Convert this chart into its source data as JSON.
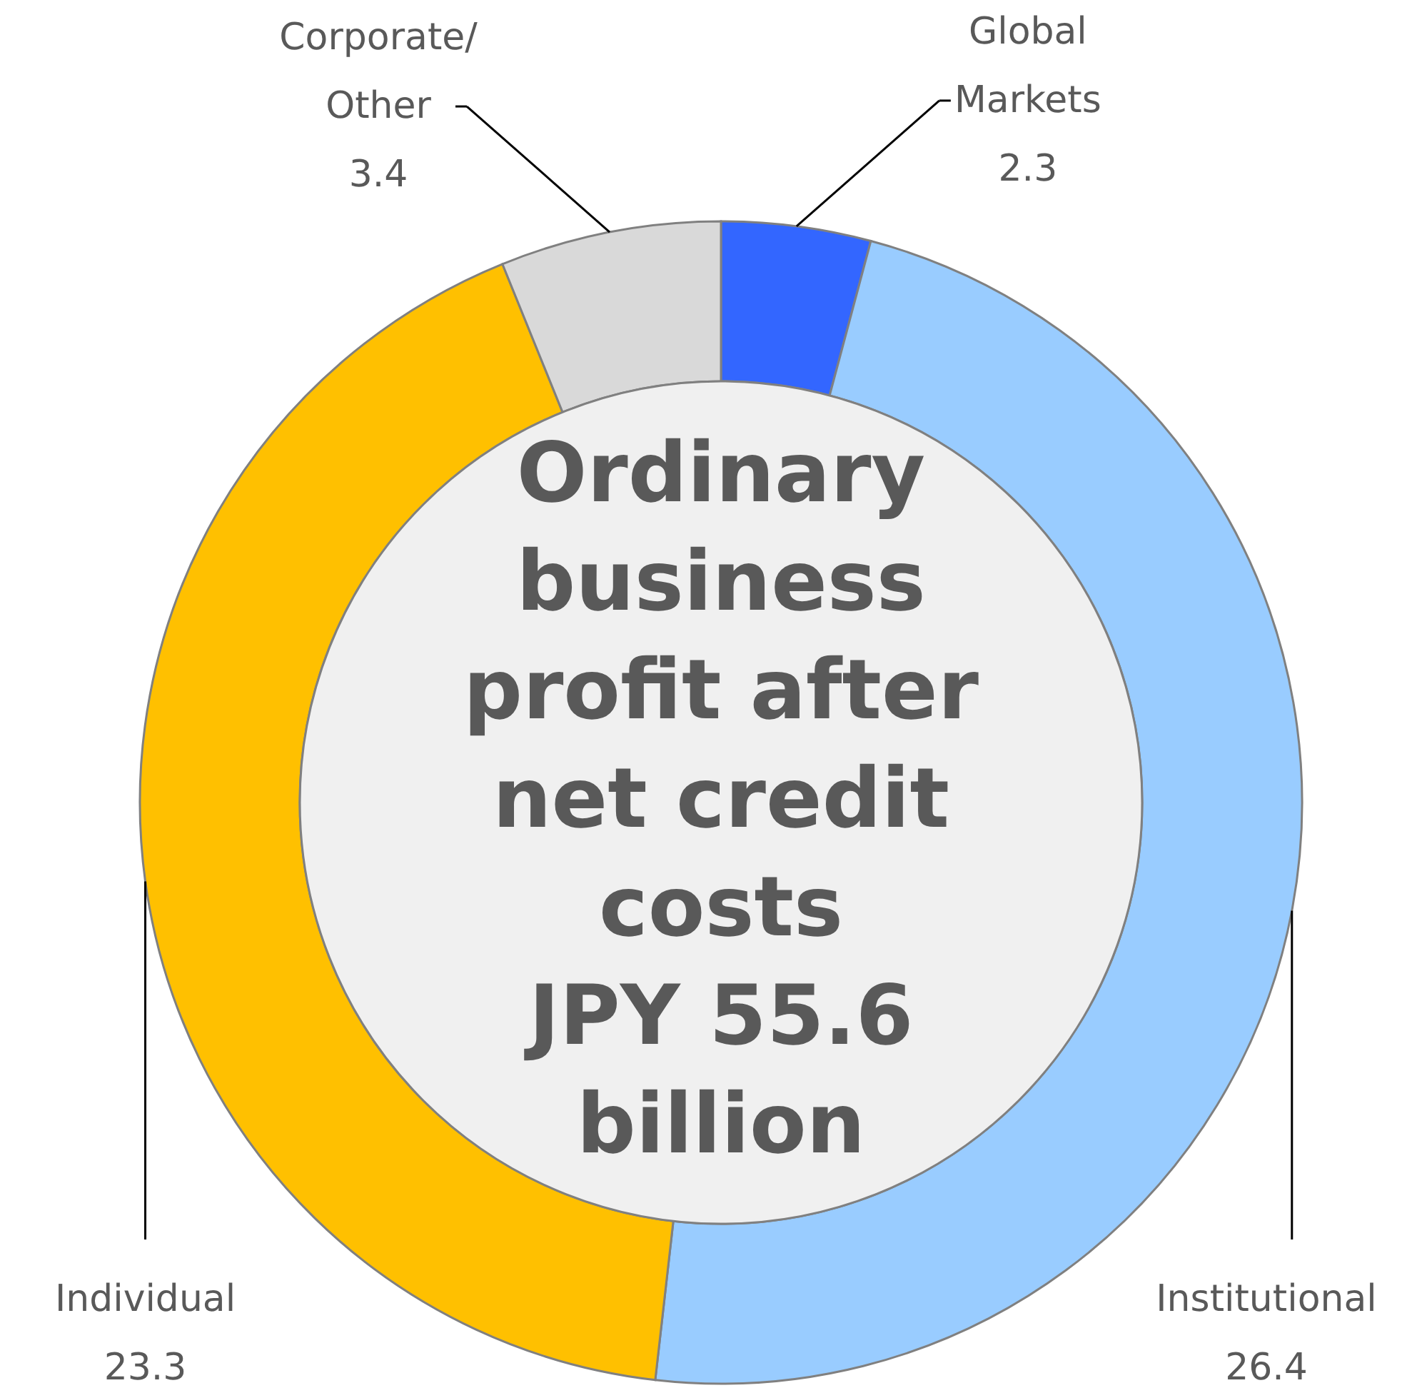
{
  "chart_data": {
    "type": "donut",
    "title": "Ordinary\nbusiness\nprofit after\nnet credit\ncosts\nJPY 55.6\nbillion",
    "categories": [
      "Global Markets",
      "Institutional",
      "Individual",
      "Corporate/Other"
    ],
    "values": [
      2.3,
      26.4,
      23.3,
      3.4
    ],
    "colors": [
      "#3366ff",
      "#99ccff",
      "#ffc000",
      "#d9d9d9"
    ],
    "data_labels": true
  }
}
